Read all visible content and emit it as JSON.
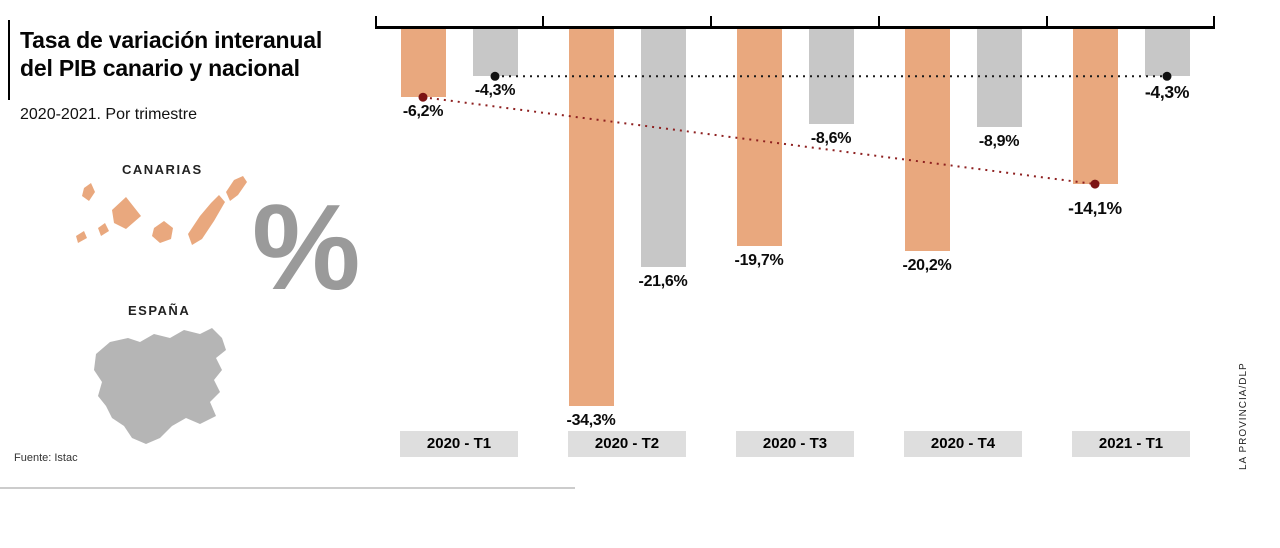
{
  "header": {
    "title_line1": "Tasa de variación interanual",
    "title_line2": "del PIB canario y nacional",
    "subtitle": "2020-2021. Por trimestre"
  },
  "legend": {
    "canarias_label": "CANARIAS",
    "espana_label": "ESPAÑA",
    "percent_symbol": "%"
  },
  "footer": {
    "source": "Fuente: Istac",
    "credit": "LA PROVINCIA/DLP"
  },
  "colors": {
    "canarias_bar": "#e9a87e",
    "espana_bar": "#c7c7c7",
    "canarias_line": "#8e2020",
    "canarias_dot": "#7c1414",
    "espana_line": "#1a1a1a",
    "espana_dot": "#111111",
    "quarter_box_bg": "#dedede",
    "percent_gray": "#9a9a9a",
    "spain_map_gray": "#b5b5b5"
  },
  "chart_data": {
    "type": "bar",
    "title": "Tasa de variación interanual del PIB canario y nacional",
    "subtitle": "2020-2021. Por trimestre",
    "unit": "%",
    "categories": [
      "2020 - T1",
      "2020 - T2",
      "2020 - T3",
      "2020 - T4",
      "2021 - T1"
    ],
    "series": [
      {
        "name": "Canarias",
        "values": [
          -6.2,
          -34.3,
          -19.7,
          -20.2,
          -14.1
        ],
        "labels": [
          "-6,2%",
          "-34,3%",
          "-19,7%",
          "-20,2%",
          "-14,1%"
        ]
      },
      {
        "name": "España",
        "values": [
          -4.3,
          -21.6,
          -8.6,
          -8.9,
          -4.3
        ],
        "labels": [
          "-4,3%",
          "-21,6%",
          "-8,6%",
          "-8,9%",
          "-4,3%"
        ]
      }
    ],
    "baseline": 0,
    "ylim": [
      -36,
      0
    ],
    "grid": false,
    "legend_position": "left-panel",
    "trend_lines": [
      {
        "series": "España",
        "from_index": 0,
        "to_index": 4
      },
      {
        "series": "Canarias",
        "from_index": 0,
        "to_index": 4
      }
    ]
  }
}
